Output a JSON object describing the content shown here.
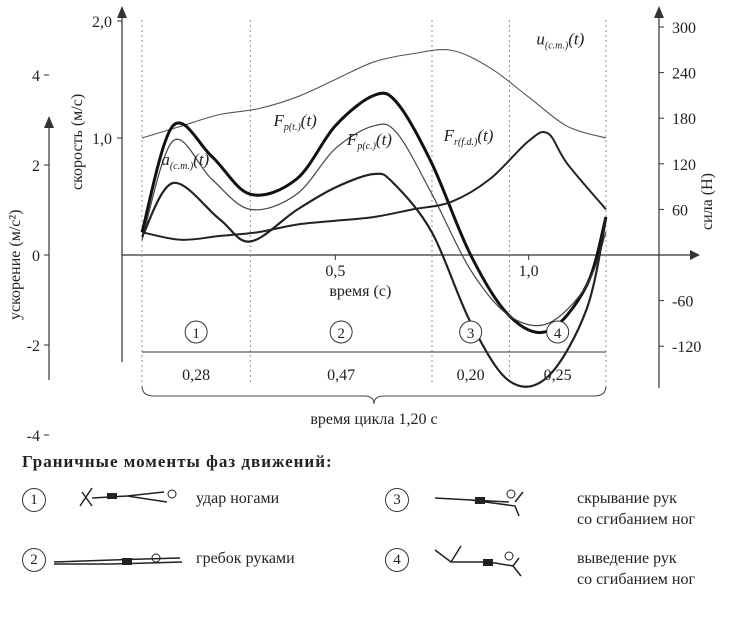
{
  "chart_data": {
    "type": "line",
    "xlabel": "время (с)",
    "x_ticks": [
      "0,5",
      "1,0"
    ],
    "x_range": [
      0,
      1.2
    ],
    "y_axes": {
      "speed": {
        "label": "скорость (м/с)",
        "ticks": [
          "1,0",
          "2,0"
        ],
        "range": [
          0,
          2.0
        ]
      },
      "acceleration": {
        "label": "ускорение (м/с²)",
        "ticks": [
          "4",
          "2",
          "0",
          "-2",
          "-4"
        ],
        "range": [
          -4,
          4
        ]
      },
      "force": {
        "label": "сила (Н)",
        "ticks": [
          "300",
          "240",
          "180",
          "120",
          "60",
          "-60",
          "-120"
        ],
        "range": [
          -120,
          300
        ]
      }
    },
    "series": [
      {
        "name": "u(c.m.)(t)",
        "axis": "speed",
        "label_main": "u",
        "label_sub": "(c.m.)",
        "label_suffix": "(t)",
        "x": [
          0,
          0.1,
          0.2,
          0.3,
          0.4,
          0.5,
          0.6,
          0.7,
          0.8,
          0.9,
          1.0,
          1.1,
          1.2
        ],
        "y": [
          1.0,
          1.1,
          1.2,
          1.25,
          1.35,
          1.5,
          1.65,
          1.72,
          1.75,
          1.6,
          1.35,
          1.1,
          1.0
        ]
      },
      {
        "name": "Fp(t.)(t)",
        "axis": "force",
        "label_main": "F",
        "label_sub": "p(t.)",
        "label_suffix": "(t)",
        "x": [
          0,
          0.08,
          0.18,
          0.28,
          0.4,
          0.5,
          0.6,
          0.66,
          0.75,
          0.85,
          0.95,
          1.05,
          1.15,
          1.2
        ],
        "y": [
          30,
          170,
          130,
          80,
          100,
          170,
          210,
          200,
          120,
          0,
          -80,
          -100,
          -40,
          50
        ]
      },
      {
        "name": "Fp(c.)(t)",
        "axis": "force",
        "label_main": "F",
        "label_sub": "p(c.)",
        "label_suffix": "(t)",
        "x": [
          0,
          0.08,
          0.18,
          0.28,
          0.4,
          0.5,
          0.6,
          0.66,
          0.75,
          0.85,
          0.95,
          1.05,
          1.15,
          1.2
        ],
        "y": [
          20,
          150,
          100,
          60,
          80,
          140,
          170,
          160,
          80,
          -20,
          -80,
          -90,
          -40,
          30
        ]
      },
      {
        "name": "Fr(f.d.)(t)",
        "axis": "force",
        "label_main": "F",
        "label_sub": "r(f.d.)",
        "label_suffix": "(t)",
        "x": [
          0,
          0.1,
          0.2,
          0.3,
          0.4,
          0.5,
          0.6,
          0.7,
          0.8,
          0.9,
          1.0,
          1.05,
          1.1,
          1.2
        ],
        "y": [
          30,
          20,
          25,
          30,
          40,
          45,
          50,
          60,
          70,
          100,
          150,
          160,
          120,
          60
        ]
      },
      {
        "name": "a(c.m.)(t)",
        "axis": "acceleration",
        "label_main": "a",
        "label_sub": "(c.m.)",
        "label_suffix": "(t)",
        "x": [
          0,
          0.08,
          0.2,
          0.28,
          0.4,
          0.5,
          0.6,
          0.65,
          0.75,
          0.85,
          0.95,
          1.05,
          1.15,
          1.2
        ],
        "y": [
          0.4,
          1.6,
          0.8,
          0.3,
          1.0,
          1.5,
          1.8,
          1.6,
          0.5,
          -1.5,
          -2.8,
          -2.7,
          -1.2,
          0.8
        ]
      }
    ],
    "phase_boundaries": [
      0,
      0.28,
      0.75,
      0.95,
      1.2
    ],
    "phases": [
      {
        "number": "1",
        "duration": "0,28"
      },
      {
        "number": "2",
        "duration": "0,47"
      },
      {
        "number": "3",
        "duration": "0,20"
      },
      {
        "number": "4",
        "duration": "0,25"
      }
    ],
    "cycle_label": "время цикла 1,20 с",
    "grid": false
  },
  "legend": {
    "title": "Граничные моменты фаз движений:",
    "items": [
      {
        "number": "1",
        "text": "удар ногами"
      },
      {
        "number": "2",
        "text": "гребок руками"
      },
      {
        "number": "3",
        "text": "скрывание рук\nсо сгибанием ног"
      },
      {
        "number": "4",
        "text": "выведение рук\nсо сгибанием ног"
      }
    ]
  }
}
